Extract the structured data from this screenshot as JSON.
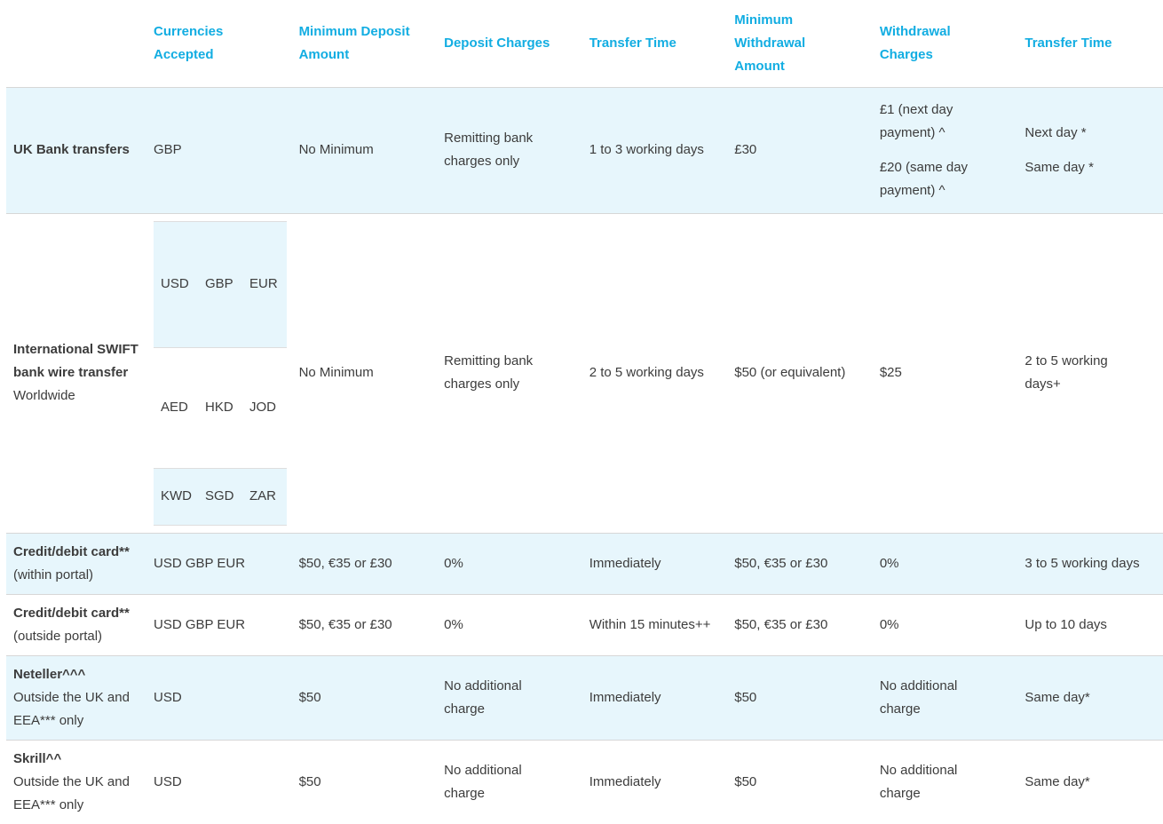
{
  "theme": {
    "accent_color": "#12ade2",
    "row_shade_color": "#e7f6fc",
    "border_color": "#d7d7d7",
    "sub_border_color": "#dedede",
    "text_color": "#3c3c3c"
  },
  "table": {
    "headers": [
      "",
      "Currencies\nAccepted",
      "Minimum Deposit\nAmount",
      "Deposit Charges",
      "Transfer Time",
      "Minimum\nWithdrawal\nAmount",
      "Withdrawal\nCharges",
      "Transfer Time"
    ],
    "rows": [
      {
        "id": "uk-bank-transfers",
        "shaded": true,
        "method": {
          "title": "UK Bank transfers",
          "subtitle": ""
        },
        "currencies": {
          "text": "GBP"
        },
        "min_deposit": [
          "No Minimum"
        ],
        "deposit_charges": [
          "Remitting bank\ncharges only"
        ],
        "deposit_transfer_time": [
          "1 to 3 working days"
        ],
        "min_withdrawal": [
          "£30"
        ],
        "withdrawal_charges": [
          "£1 (next day\npayment) ^",
          "£20 (same day\npayment) ^"
        ],
        "withdrawal_transfer_time": [
          "Next day *",
          "Same day *"
        ]
      },
      {
        "id": "international-swift-bank-wire",
        "shaded": false,
        "method": {
          "title": "International SWIFT\nbank wire transfer",
          "subtitle": "Worldwide"
        },
        "currencies": {
          "grid": [
            [
              "USD",
              "GBP",
              "EUR"
            ],
            [
              "AED",
              "HKD",
              "JOD"
            ],
            [
              "KWD",
              "SGD",
              "ZAR"
            ]
          ]
        },
        "min_deposit": [
          "No Minimum"
        ],
        "deposit_charges": [
          "Remitting bank\ncharges only"
        ],
        "deposit_transfer_time": [
          "2 to 5 working days"
        ],
        "min_withdrawal": [
          "$50 (or equivalent)"
        ],
        "withdrawal_charges": [
          "$25"
        ],
        "withdrawal_transfer_time": [
          "2 to 5 working\ndays+"
        ]
      },
      {
        "id": "credit-debit-card-within-portal",
        "shaded": true,
        "method": {
          "title": "Credit/debit card**",
          "subtitle": "(within portal)"
        },
        "currencies": {
          "text": "USD GBP EUR"
        },
        "min_deposit": [
          "$50, €35 or £30"
        ],
        "deposit_charges": [
          "0%"
        ],
        "deposit_transfer_time": [
          "Immediately"
        ],
        "min_withdrawal": [
          "$50, €35 or £30"
        ],
        "withdrawal_charges": [
          "0%"
        ],
        "withdrawal_transfer_time": [
          "3 to 5 working days"
        ]
      },
      {
        "id": "credit-debit-card-outside-portal",
        "shaded": false,
        "method": {
          "title": "Credit/debit card**",
          "subtitle": "(outside portal)"
        },
        "currencies": {
          "text": "USD GBP EUR"
        },
        "min_deposit": [
          "$50, €35 or £30"
        ],
        "deposit_charges": [
          "0%"
        ],
        "deposit_transfer_time": [
          "Within 15 minutes++"
        ],
        "min_withdrawal": [
          "$50, €35 or £30"
        ],
        "withdrawal_charges": [
          "0%"
        ],
        "withdrawal_transfer_time": [
          "Up to 10 days"
        ]
      },
      {
        "id": "neteller",
        "shaded": true,
        "method": {
          "title": "Neteller^^^",
          "subtitle": "Outside the UK and\nEEA*** only"
        },
        "currencies": {
          "text": "USD"
        },
        "min_deposit": [
          "$50"
        ],
        "deposit_charges": [
          "No additional\ncharge"
        ],
        "deposit_transfer_time": [
          "Immediately"
        ],
        "min_withdrawal": [
          "$50"
        ],
        "withdrawal_charges": [
          "No additional\ncharge"
        ],
        "withdrawal_transfer_time": [
          "Same day*"
        ]
      },
      {
        "id": "skrill",
        "shaded": false,
        "method": {
          "title": "Skrill^^",
          "subtitle": "Outside the UK and\nEEA*** only"
        },
        "currencies": {
          "text": "USD"
        },
        "min_deposit": [
          "$50"
        ],
        "deposit_charges": [
          "No additional\ncharge"
        ],
        "deposit_transfer_time": [
          "Immediately"
        ],
        "min_withdrawal": [
          "$50"
        ],
        "withdrawal_charges": [
          "No additional\ncharge"
        ],
        "withdrawal_transfer_time": [
          "Same day*"
        ]
      }
    ]
  }
}
